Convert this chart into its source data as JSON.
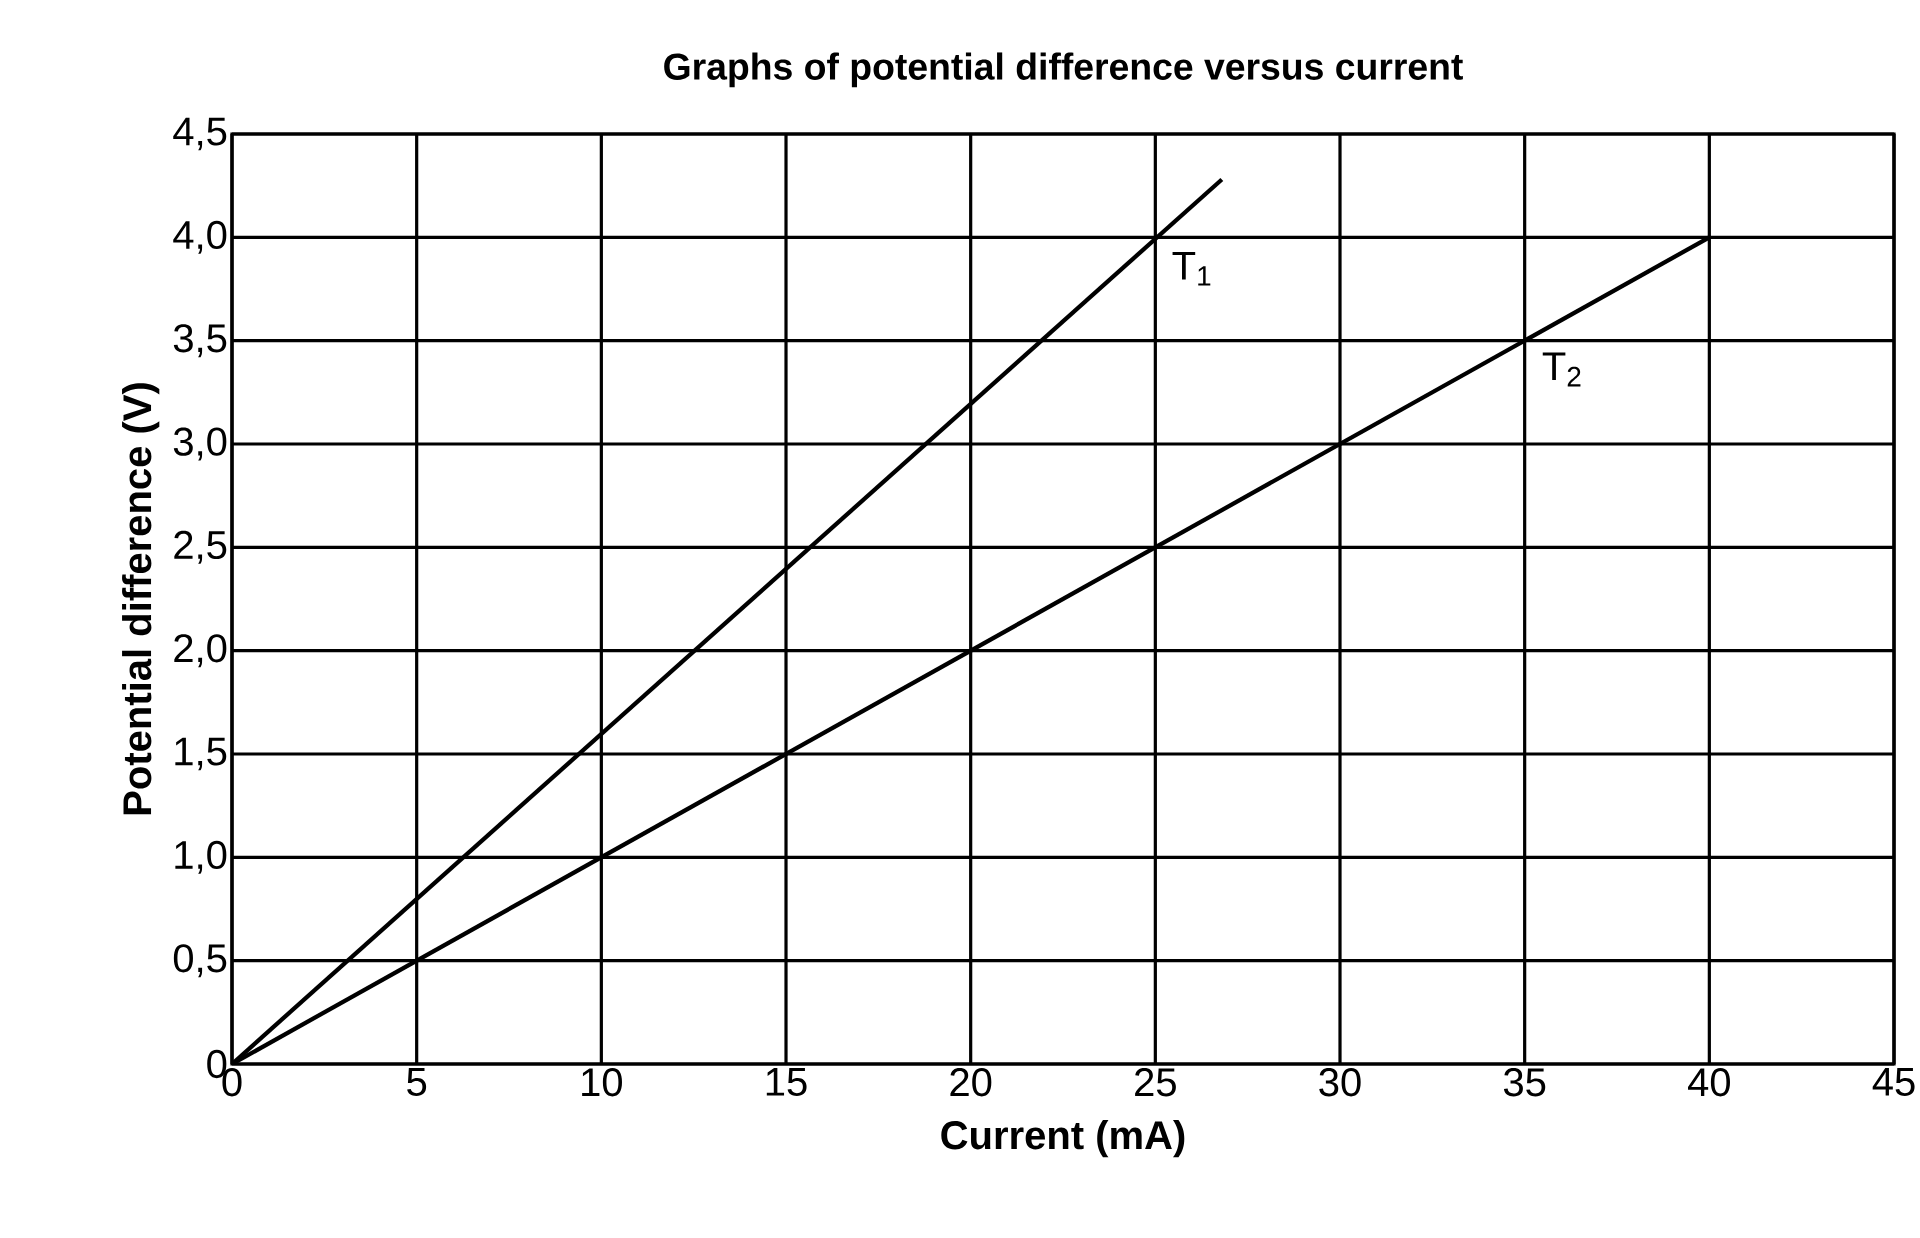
{
  "chart_data": {
    "type": "line",
    "title": "Graphs of potential difference versus current",
    "xlabel": "Current (mA)",
    "ylabel": "Potential difference (V)",
    "series": [
      {
        "name": "T$_{1}$",
        "color": "#000000",
        "x": [
          0,
          26.8
        ],
        "values": [
          0,
          4.28
        ]
      },
      {
        "name": "T$_{2}$",
        "color": "#000000",
        "x": [
          0,
          40
        ],
        "values": [
          0,
          4.0
        ]
      }
    ],
    "xlim": [
      0,
      45
    ],
    "xticks": [
      0,
      5,
      10,
      15,
      20,
      25,
      30,
      35,
      40,
      45
    ],
    "ylim": [
      0,
      4.5
    ],
    "yticks": [
      0,
      {
        "value": 0.5,
        "label": "0,5"
      },
      {
        "value": 1.0,
        "label": "1,0"
      },
      {
        "value": 1.5,
        "label": "1,5"
      },
      {
        "value": 2.0,
        "label": "2,0"
      },
      {
        "value": 2.5,
        "label": "2,5"
      },
      {
        "value": 3.0,
        "label": "3,0"
      },
      {
        "value": 3.5,
        "label": "3,5"
      },
      {
        "value": 4.0,
        "label": "4,0"
      },
      {
        "value": 4.5,
        "label": "4,5"
      }
    ],
    "grid": true,
    "marker": "none",
    "line_style": "solid"
  }
}
